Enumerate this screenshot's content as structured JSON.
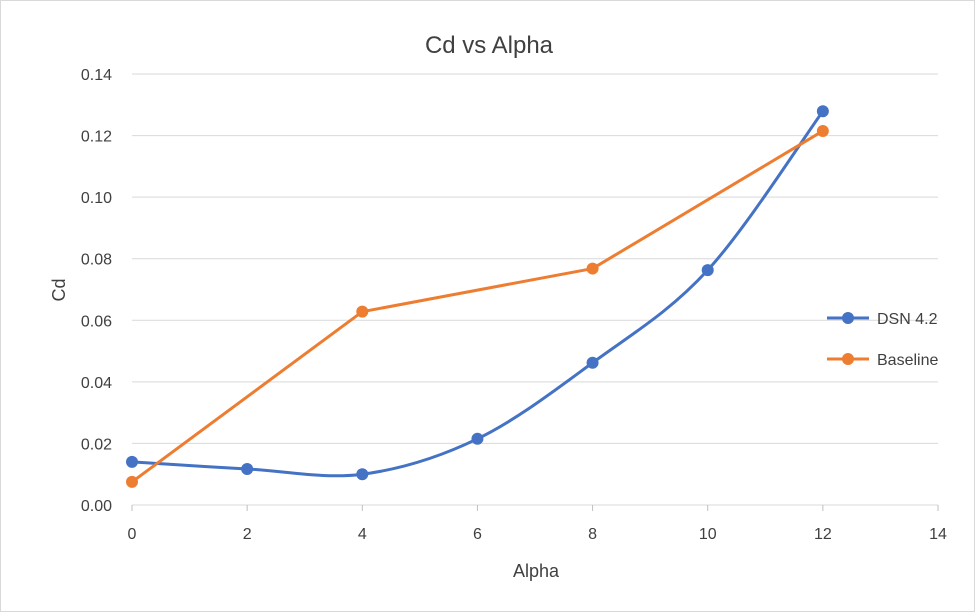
{
  "chart_data": {
    "type": "line",
    "title": "Cd vs Alpha",
    "xlabel": "Alpha",
    "ylabel": "Cd",
    "xlim": [
      0,
      14
    ],
    "ylim": [
      0,
      0.14
    ],
    "x_ticks": [
      "0",
      "2",
      "4",
      "6",
      "8",
      "10",
      "12",
      "14"
    ],
    "y_ticks": [
      "0.00",
      "0.02",
      "0.04",
      "0.06",
      "0.08",
      "0.10",
      "0.12",
      "0.14"
    ],
    "grid": true,
    "legend_position": "right",
    "series": [
      {
        "name": "DSN 4.2",
        "color": "#4472c4",
        "smooth": true,
        "x": [
          0,
          2,
          4,
          6,
          8,
          10,
          12
        ],
        "y": [
          0.014,
          0.0117,
          0.01,
          0.0215,
          0.0462,
          0.0763,
          0.1279
        ]
      },
      {
        "name": "Baseline",
        "color": "#ed7d31",
        "smooth": false,
        "x": [
          0,
          4,
          8,
          12
        ],
        "y": [
          0.0075,
          0.0628,
          0.0768,
          0.1215
        ]
      }
    ]
  }
}
